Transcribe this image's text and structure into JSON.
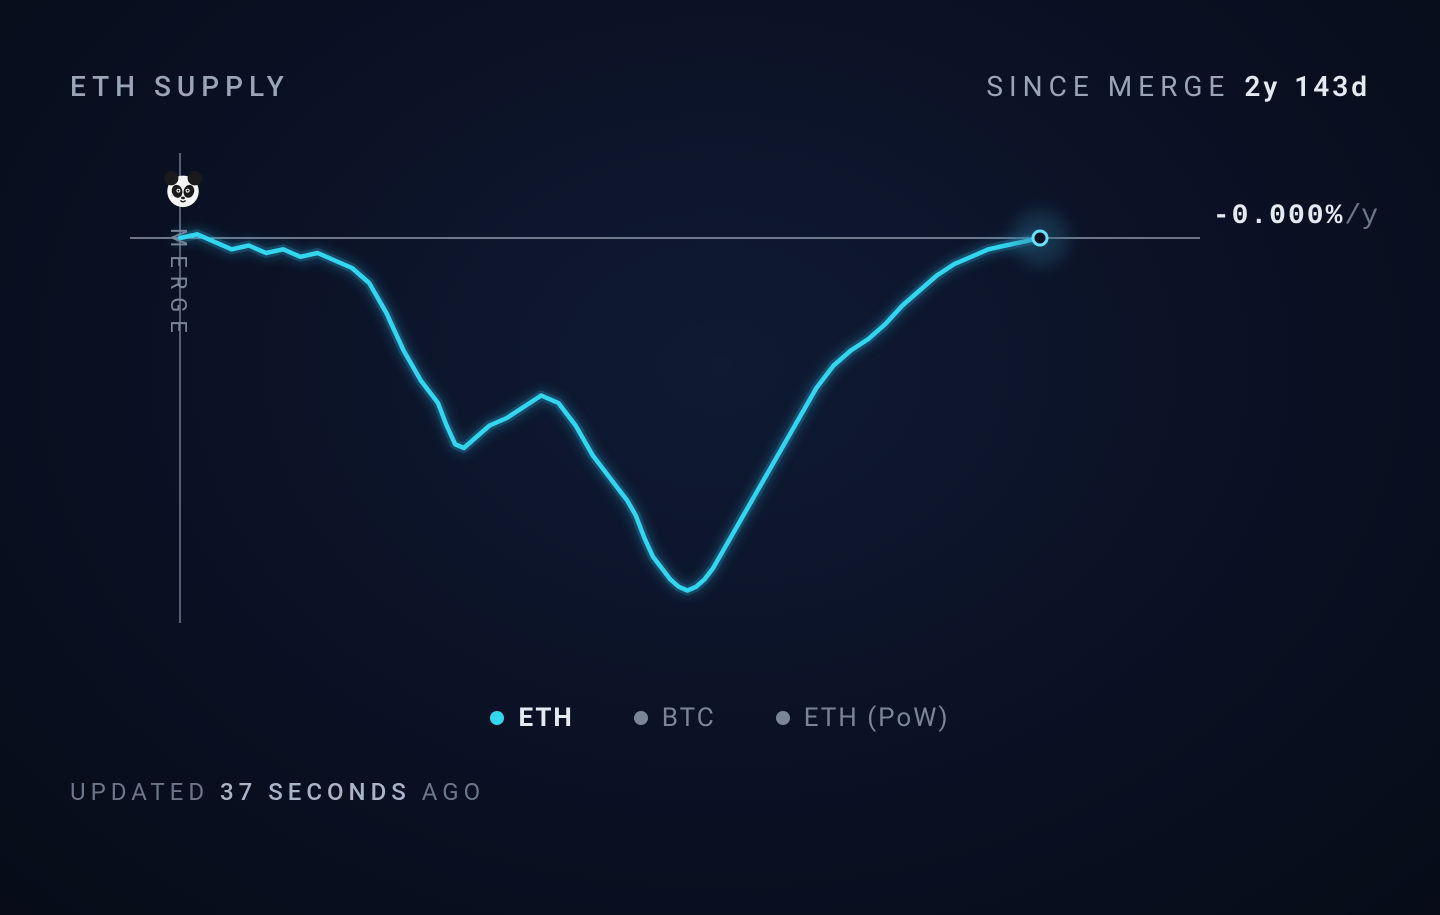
{
  "header": {
    "title": "ETH SUPPLY",
    "since_label": "SINCE MERGE",
    "since_years": "2y",
    "since_days": "143d"
  },
  "chart": {
    "type": "line",
    "merge_axis_label": "MERGE",
    "rate_value": "-0.000%",
    "rate_unit": "/y",
    "baseline_y": 0,
    "xlim": [
      0,
      100
    ],
    "ylim": [
      -100,
      20
    ],
    "line_color": "#33d6ef",
    "line_glow_color": "#2aa8d8",
    "line_width": 4.5,
    "axis_color": "#8a94a6",
    "axis_width": 1.2,
    "baseline_color": "#a8b2c4",
    "baseline_width": 1.2,
    "end_marker_fill": "#0b1120",
    "end_marker_stroke": "#66e2ff",
    "end_marker_radius": 7,
    "end_halo_color": "#2a6a8a",
    "end_halo_radius": 28,
    "background_color": "transparent",
    "panda_icon_name": "panda-icon",
    "series": {
      "eth": {
        "points": [
          [
            0,
            0
          ],
          [
            2,
            1
          ],
          [
            4,
            -1
          ],
          [
            6,
            -3
          ],
          [
            8,
            -2
          ],
          [
            10,
            -4
          ],
          [
            12,
            -3
          ],
          [
            14,
            -5
          ],
          [
            16,
            -4
          ],
          [
            18,
            -6
          ],
          [
            20,
            -8
          ],
          [
            22,
            -12
          ],
          [
            24,
            -20
          ],
          [
            26,
            -30
          ],
          [
            28,
            -38
          ],
          [
            30,
            -44
          ],
          [
            31,
            -50
          ],
          [
            32,
            -55
          ],
          [
            33,
            -56
          ],
          [
            34,
            -54
          ],
          [
            35,
            -52
          ],
          [
            36,
            -50
          ],
          [
            38,
            -48
          ],
          [
            40,
            -45
          ],
          [
            42,
            -42
          ],
          [
            44,
            -44
          ],
          [
            46,
            -50
          ],
          [
            48,
            -58
          ],
          [
            50,
            -64
          ],
          [
            52,
            -70
          ],
          [
            53,
            -74
          ],
          [
            54,
            -80
          ],
          [
            55,
            -85
          ],
          [
            56,
            -88
          ],
          [
            57,
            -91
          ],
          [
            58,
            -93
          ],
          [
            59,
            -94
          ],
          [
            60,
            -93
          ],
          [
            61,
            -91
          ],
          [
            62,
            -88
          ],
          [
            63,
            -84
          ],
          [
            64,
            -80
          ],
          [
            66,
            -72
          ],
          [
            68,
            -64
          ],
          [
            70,
            -56
          ],
          [
            72,
            -48
          ],
          [
            74,
            -40
          ],
          [
            76,
            -34
          ],
          [
            78,
            -30
          ],
          [
            80,
            -27
          ],
          [
            82,
            -23
          ],
          [
            84,
            -18
          ],
          [
            86,
            -14
          ],
          [
            88,
            -10
          ],
          [
            90,
            -7
          ],
          [
            92,
            -5
          ],
          [
            94,
            -3
          ],
          [
            96,
            -2
          ],
          [
            98,
            -1
          ],
          [
            100,
            0
          ]
        ]
      }
    }
  },
  "legend": {
    "items": [
      {
        "key": "eth",
        "label": "ETH",
        "color": "#33d6ef",
        "active": true
      },
      {
        "key": "btc",
        "label": "BTC",
        "color": "#7a8599",
        "active": false
      },
      {
        "key": "eth_pow",
        "label": "ETH (PoW)",
        "color": "#7a8599",
        "active": false
      }
    ]
  },
  "footer": {
    "updated_prefix": "UPDATED",
    "updated_value": "37 SECONDS",
    "updated_suffix": "AGO"
  },
  "colors": {
    "bg": "#0b1120",
    "text_muted": "#9aa5b8",
    "text_dim": "#6b7688",
    "text_bright": "#e5e9f0"
  }
}
